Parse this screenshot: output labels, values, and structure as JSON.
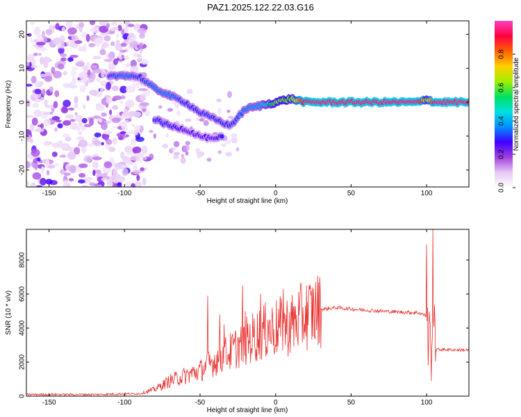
{
  "title": "PAZ1.2025.122.22.03.G16",
  "chart_data": [
    {
      "type": "heatmap",
      "xlabel": "Height of straight line (km)",
      "ylabel": "Frequency (Hz)",
      "xlim": [
        -165,
        128
      ],
      "ylim": [
        -25,
        24
      ],
      "xticks": [
        -150,
        -100,
        -50,
        0,
        50,
        100
      ],
      "yticks": [
        20,
        10,
        0,
        -10,
        -20
      ],
      "colorbar": {
        "label": "Normalized spectral amplitude",
        "range": [
          0,
          1
        ],
        "ticks": [
          0.0,
          0.2,
          0.4,
          0.6,
          0.8
        ],
        "colors": [
          "#ffffff",
          "#e6c8f5",
          "#a040e0",
          "#4000ff",
          "#0090ff",
          "#00e0e0",
          "#00e060",
          "#a0f000",
          "#ffd000",
          "#ff6000",
          "#ff0040",
          "#ff40c0"
        ]
      },
      "ridge": {
        "x": [
          -110,
          -100,
          -90,
          -80,
          -70,
          -60,
          -50,
          -40,
          -30,
          -20,
          -10,
          0,
          10,
          20,
          95,
          100,
          105,
          128
        ],
        "y": [
          7.5,
          8,
          7.5,
          4,
          2,
          0,
          -3,
          -5,
          -7,
          -2,
          -1,
          0,
          1,
          0,
          0,
          1,
          0,
          0
        ],
        "amplitude": [
          0.3,
          0.35,
          0.3,
          0.35,
          0.35,
          0.3,
          0.3,
          0.3,
          0.3,
          0.35,
          0.4,
          0.6,
          0.6,
          0.95,
          0.95,
          0.6,
          0.95,
          0.95
        ]
      },
      "secondary_branch": {
        "x": [
          -80,
          -70,
          -60,
          -50,
          -40,
          -35
        ],
        "y": [
          -5,
          -7,
          -8,
          -10,
          -11,
          -10
        ],
        "amplitude": [
          0.3,
          0.3,
          0.25,
          0.25,
          0.25,
          0.3
        ]
      },
      "noise_region_x": [
        -165,
        -85
      ]
    },
    {
      "type": "line",
      "xlabel": "Height of straight line (km)",
      "ylabel": "SNR (10 * v/v)",
      "xlim": [
        -165,
        128
      ],
      "ylim": [
        0,
        9800
      ],
      "xticks": [
        -150,
        -100,
        -50,
        0,
        50,
        100
      ],
      "yticks": [
        0,
        2000,
        4000,
        6000,
        8000
      ],
      "color": "#e8302e",
      "envelope": {
        "x": [
          -165,
          -120,
          -90,
          -80,
          -70,
          -60,
          -50,
          -40,
          -30,
          -20,
          -10,
          0,
          10,
          20,
          30,
          40,
          60,
          80,
          95,
          100,
          103,
          105,
          106,
          128
        ],
        "y": [
          100,
          100,
          150,
          400,
          900,
          1200,
          1500,
          2100,
          2600,
          3200,
          3700,
          4000,
          4200,
          4800,
          5100,
          5200,
          5050,
          4950,
          4900,
          4700,
          3600,
          4700,
          2750,
          2700
        ]
      },
      "spikes": {
        "x": [
          -45,
          -37,
          -34,
          -22,
          -20,
          -10,
          -5,
          5,
          100,
          101,
          103,
          104
        ],
        "y": [
          5900,
          4800,
          4200,
          6500,
          5000,
          6000,
          4500,
          6300,
          8900,
          1800,
          900,
          9800
        ]
      }
    }
  ]
}
